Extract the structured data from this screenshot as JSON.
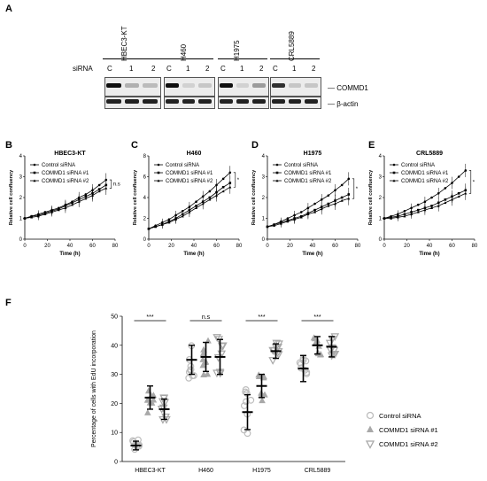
{
  "panels": {
    "a": "A",
    "b": "B",
    "c": "C",
    "d": "D",
    "e": "E",
    "f": "F"
  },
  "western": {
    "row_label": "siRNA",
    "cell_lines": [
      "HBEC3-KT",
      "H460",
      "H1975",
      "CRL5889"
    ],
    "lanes": [
      "C",
      "1",
      "2"
    ],
    "protein": "COMMD1",
    "loading": "β-actin",
    "commd1_intensity": [
      [
        1.0,
        0.25,
        0.2
      ],
      [
        1.0,
        0.1,
        0.15
      ],
      [
        1.0,
        0.1,
        0.35
      ],
      [
        0.85,
        0.15,
        0.15
      ]
    ]
  },
  "chart_data": [
    {
      "type": "line",
      "title": "HBEC3-KT",
      "xlabel": "Time (h)",
      "ylabel": "Relative cell confluency",
      "xlim": [
        0,
        80
      ],
      "ylim": [
        0,
        4
      ],
      "xticks": [
        0,
        20,
        40,
        60,
        80
      ],
      "yticks": [
        0,
        1,
        2,
        3,
        4
      ],
      "x": [
        0,
        6,
        12,
        18,
        24,
        30,
        36,
        42,
        48,
        54,
        60,
        66,
        72
      ],
      "series": [
        {
          "name": "Control siRNA",
          "values": [
            1.0,
            1.1,
            1.2,
            1.3,
            1.4,
            1.5,
            1.65,
            1.8,
            2.0,
            2.15,
            2.35,
            2.6,
            2.85
          ]
        },
        {
          "name": "COMMD1 siRNA #1",
          "values": [
            1.0,
            1.1,
            1.15,
            1.25,
            1.35,
            1.45,
            1.6,
            1.75,
            1.9,
            2.05,
            2.2,
            2.4,
            2.6
          ]
        },
        {
          "name": "COMMD1 siRNA #2",
          "values": [
            1.0,
            1.05,
            1.1,
            1.2,
            1.3,
            1.4,
            1.5,
            1.65,
            1.8,
            1.95,
            2.1,
            2.3,
            2.45
          ]
        }
      ],
      "significance": "n.s"
    },
    {
      "type": "line",
      "title": "H460",
      "xlabel": "Time (h)",
      "ylabel": "Relative cell confluency",
      "xlim": [
        0,
        80
      ],
      "ylim": [
        0,
        8
      ],
      "xticks": [
        0,
        20,
        40,
        60,
        80
      ],
      "yticks": [
        0,
        2,
        4,
        6,
        8
      ],
      "x": [
        0,
        6,
        12,
        18,
        24,
        30,
        36,
        42,
        48,
        54,
        60,
        66,
        72
      ],
      "series": [
        {
          "name": "Control siRNA",
          "values": [
            1.0,
            1.3,
            1.6,
            1.9,
            2.3,
            2.7,
            3.1,
            3.6,
            4.1,
            4.6,
            5.2,
            5.8,
            6.4
          ]
        },
        {
          "name": "COMMD1 siRNA #1",
          "values": [
            1.0,
            1.2,
            1.4,
            1.7,
            2.0,
            2.4,
            2.8,
            3.2,
            3.6,
            4.0,
            4.5,
            5.0,
            5.4
          ]
        },
        {
          "name": "COMMD1 siRNA #2",
          "values": [
            1.0,
            1.2,
            1.4,
            1.6,
            1.9,
            2.2,
            2.6,
            3.0,
            3.4,
            3.8,
            4.2,
            4.6,
            5.0
          ]
        }
      ],
      "significance": "*"
    },
    {
      "type": "line",
      "title": "H1975",
      "xlabel": "Time (h)",
      "ylabel": "Relative cell confluency",
      "xlim": [
        0,
        80
      ],
      "ylim": [
        0,
        4
      ],
      "xticks": [
        0,
        20,
        40,
        60,
        80
      ],
      "yticks": [
        0,
        1,
        2,
        3,
        4
      ],
      "x": [
        0,
        6,
        12,
        18,
        24,
        30,
        36,
        42,
        48,
        54,
        60,
        66,
        72
      ],
      "series": [
        {
          "name": "Control siRNA",
          "values": [
            0.6,
            0.7,
            0.85,
            1.0,
            1.15,
            1.3,
            1.5,
            1.7,
            1.9,
            2.1,
            2.35,
            2.6,
            2.9
          ]
        },
        {
          "name": "COMMD1 siRNA #1",
          "values": [
            0.6,
            0.7,
            0.8,
            0.9,
            1.0,
            1.1,
            1.25,
            1.4,
            1.55,
            1.7,
            1.85,
            2.0,
            2.15
          ]
        },
        {
          "name": "COMMD1 siRNA #2",
          "values": [
            0.6,
            0.65,
            0.75,
            0.85,
            0.95,
            1.05,
            1.2,
            1.3,
            1.45,
            1.6,
            1.7,
            1.85,
            1.95
          ]
        }
      ],
      "significance": "*"
    },
    {
      "type": "line",
      "title": "CRL5889",
      "xlabel": "Time (h)",
      "ylabel": "Relative cell confluency",
      "xlim": [
        0,
        80
      ],
      "ylim": [
        0,
        4
      ],
      "xticks": [
        0,
        20,
        40,
        60,
        80
      ],
      "yticks": [
        0,
        1,
        2,
        3,
        4
      ],
      "x": [
        0,
        6,
        12,
        18,
        24,
        30,
        36,
        42,
        48,
        54,
        60,
        66,
        72
      ],
      "series": [
        {
          "name": "Control siRNA",
          "values": [
            1.0,
            1.1,
            1.2,
            1.35,
            1.5,
            1.65,
            1.8,
            2.0,
            2.2,
            2.45,
            2.7,
            3.0,
            3.3
          ]
        },
        {
          "name": "COMMD1 siRNA #1",
          "values": [
            1.0,
            1.05,
            1.1,
            1.2,
            1.3,
            1.4,
            1.5,
            1.6,
            1.75,
            1.9,
            2.05,
            2.2,
            2.35
          ]
        },
        {
          "name": "COMMD1 siRNA #2",
          "values": [
            1.0,
            1.0,
            1.05,
            1.1,
            1.2,
            1.3,
            1.4,
            1.5,
            1.6,
            1.75,
            1.9,
            2.05,
            2.2
          ]
        }
      ],
      "significance": "*"
    },
    {
      "type": "scatter",
      "ylabel": "Percentage of cells with EdU incorporation",
      "ylim": [
        0,
        50
      ],
      "yticks": [
        0,
        10,
        20,
        30,
        40,
        50
      ],
      "categories": [
        "HBEC3-KT",
        "H460",
        "H1975",
        "CRL5889"
      ],
      "series": [
        {
          "name": "Control siRNA",
          "marker": "circle",
          "means": [
            5.5,
            35,
            17,
            32
          ],
          "sd": [
            1.5,
            5,
            6,
            4.5
          ]
        },
        {
          "name": "COMMD1 siRNA #1",
          "marker": "triangle-up",
          "means": [
            22,
            36,
            26,
            40
          ],
          "sd": [
            4,
            5,
            4,
            3
          ]
        },
        {
          "name": "COMMD1 siRNA #2",
          "marker": "triangle-down",
          "means": [
            18,
            36,
            38,
            39.5
          ],
          "sd": [
            3.5,
            6,
            2.5,
            3.5
          ]
        }
      ],
      "significance": [
        "***",
        "n.s",
        "***",
        "***"
      ]
    }
  ]
}
